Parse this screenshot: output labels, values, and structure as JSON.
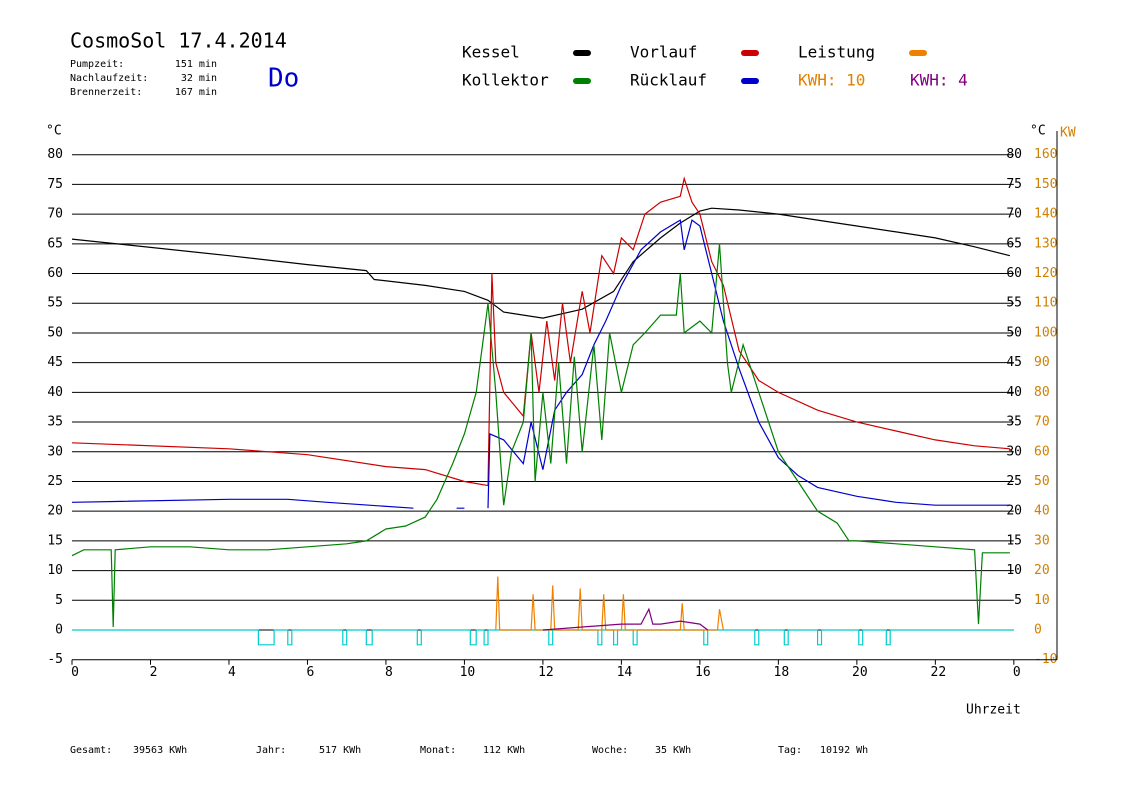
{
  "chart_data": {
    "type": "line",
    "title": "CosmoSol 17.4.2014",
    "day": "Do",
    "stats": [
      {
        "label": "Pumpzeit:",
        "value": "151 min"
      },
      {
        "label": "Nachlaufzeit:",
        "value": "32 min"
      },
      {
        "label": "Brennerzeit:",
        "value": "167 min"
      }
    ],
    "kwh_labels": [
      {
        "text": "KWH: 10",
        "color": "#e08000"
      },
      {
        "text": "KWH: 4",
        "color": "#800080"
      }
    ],
    "totals": [
      {
        "label": "Gesamt:",
        "value": "39563 KWh"
      },
      {
        "label": "Jahr:",
        "value": "517 KWh"
      },
      {
        "label": "Monat:",
        "value": "112 KWh"
      },
      {
        "label": "Woche:",
        "value": "35 KWh"
      },
      {
        "label": "Tag:",
        "value": "10192 Wh"
      }
    ],
    "x_label": "Uhrzeit",
    "y_label": "°C",
    "y_label_right": "°C",
    "y2_label": "KW",
    "xlim": [
      0,
      25.1
    ],
    "xticks": [
      0,
      2,
      4,
      6,
      8,
      10,
      12,
      14,
      16,
      18,
      20,
      22,
      {
        "value": 24,
        "label": "0"
      }
    ],
    "ylim": [
      -5,
      85
    ],
    "yticks": [
      -5,
      0,
      5,
      10,
      15,
      20,
      25,
      30,
      35,
      40,
      45,
      50,
      55,
      60,
      65,
      70,
      75,
      80
    ],
    "y2lim": [
      -10,
      170
    ],
    "y2ticks": [
      -10,
      0,
      10,
      20,
      30,
      40,
      50,
      60,
      70,
      80,
      90,
      100,
      110,
      120,
      130,
      140,
      150,
      160
    ],
    "grid": true,
    "series": [
      {
        "name": "Kessel",
        "color": "#000000",
        "x": [
          0,
          4,
          6,
          7.5,
          7.7,
          9,
          10,
          10.6,
          11,
          12,
          13,
          13.8,
          14.3,
          15,
          15.5,
          16,
          16.3,
          17,
          18,
          19,
          20,
          21,
          22,
          23,
          23.9
        ],
        "values": [
          65.8,
          63,
          61.5,
          60.5,
          59,
          58,
          57,
          55.5,
          53.5,
          52.5,
          54,
          57,
          62,
          66,
          68.5,
          70.5,
          71,
          70.7,
          70,
          69,
          68,
          67,
          66,
          64.5,
          63
        ]
      },
      {
        "name": "Kollektor",
        "color": "#008000",
        "x": [
          0,
          0.3,
          1,
          1.05,
          1.1,
          2,
          3,
          4,
          5,
          6,
          7,
          7.5,
          8,
          8.5,
          9,
          9.3,
          9.7,
          10,
          10.3,
          10.5,
          10.6,
          10.8,
          11,
          11.2,
          11.5,
          11.7,
          11.8,
          12,
          12.2,
          12.4,
          12.6,
          12.8,
          13,
          13.3,
          13.5,
          13.7,
          14,
          14.3,
          14.6,
          15,
          15.4,
          15.5,
          15.6,
          16,
          16.3,
          16.5,
          16.7,
          16.8,
          17.1,
          17.5,
          18,
          18.5,
          19,
          19.5,
          19.8,
          20,
          21,
          22,
          23,
          23.1,
          23.2,
          23.9
        ],
        "values": [
          12.5,
          13.5,
          13.5,
          0.5,
          13.5,
          14,
          14,
          13.5,
          13.5,
          14,
          14.5,
          15,
          17,
          17.5,
          19,
          22,
          28,
          33,
          40,
          50,
          55,
          40,
          21,
          30,
          35,
          50,
          25,
          40,
          28,
          45,
          28,
          46,
          30,
          48,
          32,
          50,
          40,
          48,
          50,
          53,
          53,
          60,
          50,
          52,
          50,
          65,
          45,
          40,
          48,
          40,
          30,
          25,
          20,
          18,
          15,
          15,
          14.5,
          14,
          13.5,
          1,
          13,
          13
        ]
      },
      {
        "name": "Vorlauf",
        "color": "#cc0000",
        "x": [
          0,
          4,
          6,
          8,
          9,
          10,
          10.6,
          10.7,
          10.8,
          11,
          11.5,
          11.7,
          11.9,
          12.1,
          12.3,
          12.5,
          12.7,
          13,
          13.2,
          13.5,
          13.8,
          14,
          14.3,
          14.6,
          15,
          15.5,
          15.6,
          15.8,
          16,
          16.3,
          16.6,
          17,
          17.5,
          18,
          19,
          20,
          21,
          22,
          23,
          23.9
        ],
        "values": [
          31.5,
          30.5,
          29.5,
          27.5,
          27,
          25,
          24.3,
          60,
          45,
          40,
          36,
          50,
          40,
          52,
          42,
          55,
          45,
          57,
          50,
          63,
          60,
          66,
          64,
          70,
          72,
          73,
          76,
          72,
          70,
          62,
          58,
          47,
          42,
          40,
          37,
          35,
          33.5,
          32,
          31,
          30.5
        ]
      },
      {
        "name": "Rücklauf",
        "color": "#0000cc",
        "x": [
          0,
          4,
          5.5,
          6.5,
          8.7,
          8.75,
          9.8,
          10,
          10.05,
          10.6,
          10.65,
          11,
          11.5,
          11.7,
          12,
          12.3,
          12.6,
          13,
          13.3,
          13.6,
          14,
          14.5,
          15,
          15.5,
          15.6,
          15.8,
          16,
          16.3,
          16.6,
          17,
          17.5,
          18,
          18.5,
          19,
          20,
          21,
          22,
          23.9
        ],
        "values": [
          21.5,
          22,
          22,
          21.5,
          20.5,
          null,
          20.5,
          20.5,
          null,
          20.5,
          33,
          32,
          28,
          35,
          27,
          37,
          40,
          43,
          48,
          52,
          58,
          64,
          67,
          69,
          64,
          69,
          68,
          60,
          52,
          44,
          35,
          29,
          26,
          24,
          22.5,
          21.5,
          21,
          21
        ]
      },
      {
        "name": "Leistung",
        "color": "#f08000",
        "axis": "y2",
        "x": [
          10.8,
          10.85,
          10.9,
          11.7,
          11.75,
          11.8,
          12.2,
          12.25,
          12.3,
          12.9,
          12.95,
          13,
          13.5,
          13.55,
          13.6,
          14,
          14.05,
          14.1,
          15.5,
          15.55,
          15.6,
          16.45,
          16.5,
          16.6
        ],
        "values": [
          0,
          18,
          0,
          0,
          12,
          0,
          0,
          15,
          0,
          0,
          14,
          0,
          0,
          12,
          0,
          0,
          12,
          0,
          0,
          9,
          0,
          0,
          7,
          0
        ]
      },
      {
        "color": "#800080",
        "axis": "y2",
        "x": [
          12,
          13,
          14,
          14.5,
          14.7,
          14.8,
          15,
          15.5,
          16,
          16.2
        ],
        "values": [
          0,
          1,
          2,
          2,
          7,
          2,
          2,
          3,
          2,
          0
        ]
      },
      {
        "color": "#00cccc",
        "x": [
          0,
          4.75,
          4.75,
          5.15,
          5.15,
          5.5,
          5.5,
          5.6,
          5.6,
          6.9,
          6.9,
          7,
          7,
          7.5,
          7.5,
          7.65,
          7.65,
          8.8,
          8.8,
          8.9,
          8.9,
          10.15,
          10.15,
          10.3,
          10.3,
          10.5,
          10.5,
          10.6,
          10.6,
          12.15,
          12.15,
          12.25,
          12.25,
          13.4,
          13.4,
          13.5,
          13.5,
          13.8,
          13.8,
          13.9,
          13.9,
          14.3,
          14.3,
          14.4,
          14.4,
          16.1,
          16.1,
          16.2,
          16.2,
          17.4,
          17.4,
          17.5,
          17.5,
          18.15,
          18.15,
          18.25,
          18.25,
          19,
          19,
          19.1,
          19.1,
          20.05,
          20.05,
          20.15,
          20.15,
          20.75,
          20.75,
          20.85,
          20.85,
          24
        ],
        "values": [
          0,
          0,
          -2.5,
          -2.5,
          0,
          0,
          -2.5,
          -2.5,
          0,
          0,
          -2.5,
          -2.5,
          0,
          0,
          -2.5,
          -2.5,
          0,
          0,
          -2.5,
          -2.5,
          0,
          0,
          -2.5,
          -2.5,
          0,
          0,
          -2.5,
          -2.5,
          0,
          0,
          -2.5,
          -2.5,
          0,
          0,
          -2.5,
          -2.5,
          0,
          0,
          -2.5,
          -2.5,
          0,
          0,
          -2.5,
          -2.5,
          0,
          0,
          -2.5,
          -2.5,
          0,
          0,
          -2.5,
          -2.5,
          0,
          0,
          -2.5,
          -2.5,
          0,
          0,
          -2.5,
          -2.5,
          0,
          0,
          -2.5,
          -2.5,
          0,
          0,
          -2.5,
          -2.5,
          0,
          0
        ]
      }
    ]
  }
}
